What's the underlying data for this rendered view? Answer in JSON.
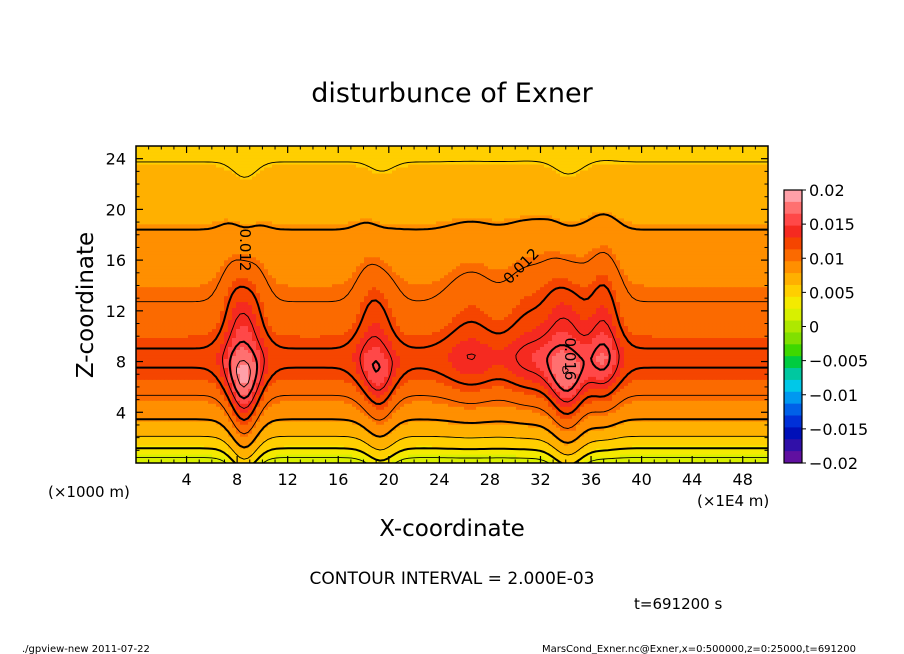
{
  "chart_data": {
    "type": "heatmap",
    "title": "disturbunce of Exner",
    "xlabel": "X-coordinate",
    "ylabel": "Z-coordinate",
    "x_unit_left": "(×1000 m)",
    "x_unit_right": "(×1E4 m)",
    "xlim": [
      0,
      50
    ],
    "ylim": [
      0,
      25
    ],
    "x_ticks": [
      4,
      8,
      12,
      16,
      20,
      24,
      28,
      32,
      36,
      40,
      44,
      48
    ],
    "y_ticks": [
      4,
      8,
      12,
      16,
      20,
      24
    ],
    "contour_interval_text": "CONTOUR INTERVAL = 2.000E-03",
    "contour_labels": [
      {
        "text": "0.012",
        "x": 8.6,
        "y": 16.8,
        "rotate": 90
      },
      {
        "text": "0.012",
        "x": 30.5,
        "y": 15.5,
        "rotate": -45
      },
      {
        "text": "0.016",
        "x": 34.3,
        "y": 8.2,
        "rotate": 90
      }
    ],
    "colorbar": {
      "labels": [
        "0.02",
        "0.015",
        "0.01",
        "0.005",
        "0",
        "−0.005",
        "−0.01",
        "−0.015",
        "−0.02"
      ],
      "range": [
        -0.02,
        0.02
      ],
      "colors_high_to_low": [
        "#ffa0a8",
        "#ff7070",
        "#ff4848",
        "#f52a20",
        "#f54500",
        "#fb6a00",
        "#ff8f00",
        "#ffb000",
        "#ffcf00",
        "#f4ea00",
        "#d8f000",
        "#aee800",
        "#80e000",
        "#3ed800",
        "#00cc40",
        "#00c8a0",
        "#00c8e8",
        "#0098f0",
        "#0060e8",
        "#0030d8",
        "#0010b8",
        "#3010a8",
        "#6010a0"
      ]
    },
    "field": {
      "description_ref": "Exner disturbance: low near ground, maximum ~8 (×1000 m), hotspots at x≈8.5,19,34,37",
      "hotspots": [
        {
          "x": 8.5,
          "z": 8.5,
          "value": 0.0175
        },
        {
          "x": 19.0,
          "z": 8.0,
          "value": 0.0165
        },
        {
          "x": 31.5,
          "z": 8.0,
          "value": 0.016
        },
        {
          "x": 34.0,
          "z": 8.0,
          "value": 0.018
        },
        {
          "x": 37.0,
          "z": 8.0,
          "value": 0.0175
        }
      ]
    }
  },
  "time_text": "t=691200 s",
  "footer_left": "./gpview-new   2011-07-22",
  "footer_right": "MarsCond_Exner.nc@Exner,x=0:500000,z=0:25000,t=691200"
}
